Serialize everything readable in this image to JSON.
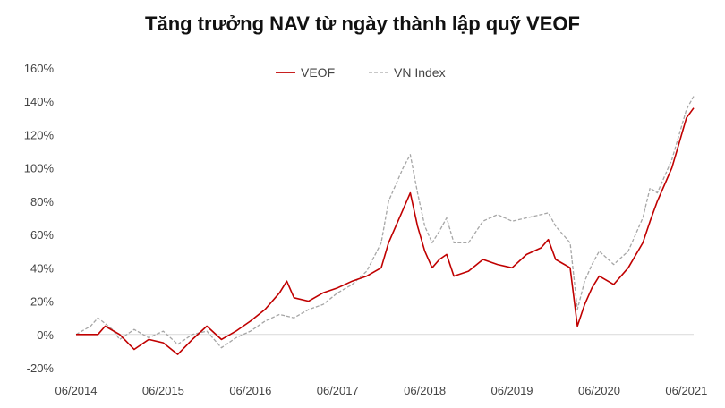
{
  "title": "Tăng trưởng NAV từ ngày thành lập quỹ VEOF",
  "chart_data": {
    "type": "line",
    "title": "Tăng trưởng NAV từ ngày thành lập quỹ VEOF",
    "xlabel": "",
    "ylabel": "",
    "x_ticks": [
      "06/2014",
      "06/2015",
      "06/2016",
      "06/2017",
      "06/2018",
      "06/2019",
      "06/2020",
      "06/2021"
    ],
    "y_ticks": [
      "-20%",
      "0%",
      "20%",
      "40%",
      "60%",
      "80%",
      "100%",
      "120%",
      "140%",
      "160%"
    ],
    "ylim": [
      -20,
      160
    ],
    "xlim": [
      "2014-06",
      "2021-07"
    ],
    "grid": false,
    "legend_position": "top-center",
    "series": [
      {
        "name": "VEOF",
        "color": "#c00000",
        "style": "solid",
        "points": [
          [
            "2014-06",
            0
          ],
          [
            "2014-09",
            0
          ],
          [
            "2014-10",
            5
          ],
          [
            "2014-12",
            0
          ],
          [
            "2015-02",
            -9
          ],
          [
            "2015-04",
            -3
          ],
          [
            "2015-06",
            -5
          ],
          [
            "2015-08",
            -12
          ],
          [
            "2015-10",
            -3
          ],
          [
            "2015-12",
            5
          ],
          [
            "2016-02",
            -3
          ],
          [
            "2016-04",
            2
          ],
          [
            "2016-06",
            8
          ],
          [
            "2016-08",
            15
          ],
          [
            "2016-10",
            25
          ],
          [
            "2016-11",
            32
          ],
          [
            "2016-12",
            22
          ],
          [
            "2017-02",
            20
          ],
          [
            "2017-04",
            25
          ],
          [
            "2017-06",
            28
          ],
          [
            "2017-08",
            32
          ],
          [
            "2017-10",
            35
          ],
          [
            "2017-12",
            40
          ],
          [
            "2018-01",
            55
          ],
          [
            "2018-02",
            65
          ],
          [
            "2018-03",
            75
          ],
          [
            "2018-04",
            85
          ],
          [
            "2018-05",
            65
          ],
          [
            "2018-06",
            50
          ],
          [
            "2018-07",
            40
          ],
          [
            "2018-08",
            45
          ],
          [
            "2018-09",
            48
          ],
          [
            "2018-10",
            35
          ],
          [
            "2018-12",
            38
          ],
          [
            "2019-02",
            45
          ],
          [
            "2019-04",
            42
          ],
          [
            "2019-06",
            40
          ],
          [
            "2019-08",
            48
          ],
          [
            "2019-10",
            52
          ],
          [
            "2019-11",
            57
          ],
          [
            "2019-12",
            45
          ],
          [
            "2020-02",
            40
          ],
          [
            "2020-03",
            5
          ],
          [
            "2020-04",
            18
          ],
          [
            "2020-05",
            28
          ],
          [
            "2020-06",
            35
          ],
          [
            "2020-08",
            30
          ],
          [
            "2020-10",
            40
          ],
          [
            "2020-12",
            55
          ],
          [
            "2021-01",
            68
          ],
          [
            "2021-02",
            80
          ],
          [
            "2021-03",
            90
          ],
          [
            "2021-04",
            100
          ],
          [
            "2021-05",
            115
          ],
          [
            "2021-06",
            130
          ],
          [
            "2021-07",
            136
          ]
        ]
      },
      {
        "name": "VN Index",
        "color": "#a6a6a6",
        "style": "dashed",
        "points": [
          [
            "2014-06",
            0
          ],
          [
            "2014-08",
            5
          ],
          [
            "2014-09",
            10
          ],
          [
            "2014-11",
            3
          ],
          [
            "2014-12",
            -3
          ],
          [
            "2015-02",
            3
          ],
          [
            "2015-04",
            -2
          ],
          [
            "2015-06",
            2
          ],
          [
            "2015-08",
            -6
          ],
          [
            "2015-10",
            0
          ],
          [
            "2015-12",
            2
          ],
          [
            "2016-02",
            -8
          ],
          [
            "2016-04",
            -2
          ],
          [
            "2016-06",
            2
          ],
          [
            "2016-08",
            8
          ],
          [
            "2016-10",
            12
          ],
          [
            "2016-12",
            10
          ],
          [
            "2017-02",
            15
          ],
          [
            "2017-04",
            18
          ],
          [
            "2017-06",
            25
          ],
          [
            "2017-08",
            30
          ],
          [
            "2017-10",
            38
          ],
          [
            "2017-12",
            55
          ],
          [
            "2018-01",
            80
          ],
          [
            "2018-02",
            90
          ],
          [
            "2018-03",
            100
          ],
          [
            "2018-04",
            108
          ],
          [
            "2018-05",
            85
          ],
          [
            "2018-06",
            65
          ],
          [
            "2018-07",
            55
          ],
          [
            "2018-08",
            62
          ],
          [
            "2018-09",
            70
          ],
          [
            "2018-10",
            55
          ],
          [
            "2018-12",
            55
          ],
          [
            "2019-02",
            68
          ],
          [
            "2019-04",
            72
          ],
          [
            "2019-06",
            68
          ],
          [
            "2019-08",
            70
          ],
          [
            "2019-10",
            72
          ],
          [
            "2019-11",
            73
          ],
          [
            "2019-12",
            65
          ],
          [
            "2020-02",
            55
          ],
          [
            "2020-03",
            15
          ],
          [
            "2020-04",
            32
          ],
          [
            "2020-05",
            42
          ],
          [
            "2020-06",
            50
          ],
          [
            "2020-08",
            42
          ],
          [
            "2020-10",
            50
          ],
          [
            "2020-12",
            70
          ],
          [
            "2021-01",
            88
          ],
          [
            "2021-02",
            85
          ],
          [
            "2021-03",
            95
          ],
          [
            "2021-04",
            105
          ],
          [
            "2021-05",
            120
          ],
          [
            "2021-06",
            135
          ],
          [
            "2021-07",
            143
          ]
        ]
      }
    ]
  }
}
